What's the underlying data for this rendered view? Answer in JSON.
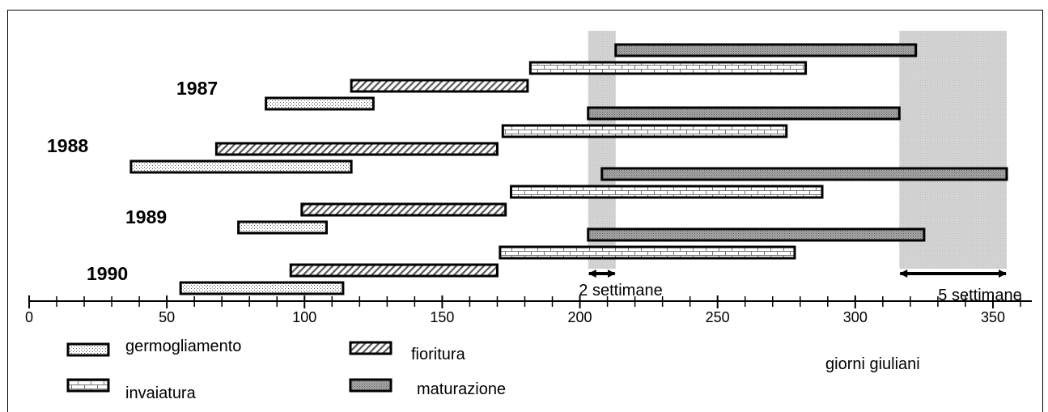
{
  "chart_data": {
    "type": "bar",
    "xlabel": "giorni giuliani",
    "xlim": [
      0,
      360
    ],
    "xticks": [
      0,
      50,
      100,
      150,
      200,
      250,
      300,
      350
    ],
    "series": [
      {
        "name": "germogliamento",
        "pattern": "dots"
      },
      {
        "name": "fioritura",
        "pattern": "diagonal"
      },
      {
        "name": "invaiatura",
        "pattern": "brick"
      },
      {
        "name": "maturazione",
        "pattern": "grey-dots"
      }
    ],
    "years": [
      {
        "label": "1987",
        "bars": [
          {
            "series": "germogliamento",
            "start": 86,
            "end": 125
          },
          {
            "series": "fioritura",
            "start": 117,
            "end": 181
          },
          {
            "series": "invaiatura",
            "start": 182,
            "end": 282
          },
          {
            "series": "maturazione",
            "start": 213,
            "end": 322
          }
        ]
      },
      {
        "label": "1988",
        "bars": [
          {
            "series": "germogliamento",
            "start": 37,
            "end": 117
          },
          {
            "series": "fioritura",
            "start": 68,
            "end": 170
          },
          {
            "series": "invaiatura",
            "start": 172,
            "end": 275
          },
          {
            "series": "maturazione",
            "start": 203,
            "end": 316
          }
        ]
      },
      {
        "label": "1989",
        "bars": [
          {
            "series": "germogliamento",
            "start": 76,
            "end": 108
          },
          {
            "series": "fioritura",
            "start": 99,
            "end": 173
          },
          {
            "series": "invaiatura",
            "start": 175,
            "end": 288
          },
          {
            "series": "maturazione",
            "start": 208,
            "end": 355
          }
        ]
      },
      {
        "label": "1990",
        "bars": [
          {
            "series": "germogliamento",
            "start": 55,
            "end": 114
          },
          {
            "series": "fioritura",
            "start": 95,
            "end": 170
          },
          {
            "series": "invaiatura",
            "start": 171,
            "end": 278
          },
          {
            "series": "maturazione",
            "start": 203,
            "end": 325
          }
        ]
      }
    ],
    "bands": [
      {
        "start": 203,
        "end": 213,
        "label": "2 settimane"
      },
      {
        "start": 316,
        "end": 355,
        "label": "5 settimane"
      }
    ]
  }
}
